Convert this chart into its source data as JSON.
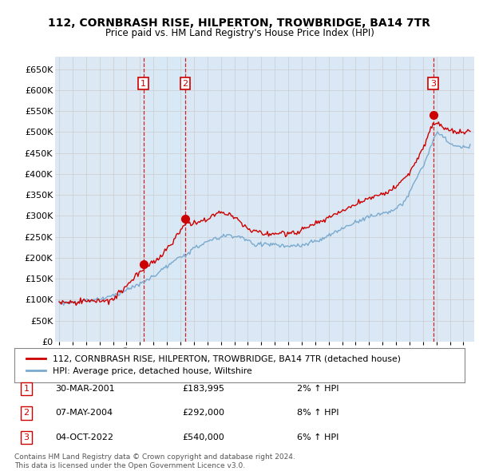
{
  "title": "112, CORNBRASH RISE, HILPERTON, TROWBRIDGE, BA14 7TR",
  "subtitle": "Price paid vs. HM Land Registry's House Price Index (HPI)",
  "ylim": [
    0,
    680000
  ],
  "yticks": [
    0,
    50000,
    100000,
    150000,
    200000,
    250000,
    300000,
    350000,
    400000,
    450000,
    500000,
    550000,
    600000,
    650000
  ],
  "ytick_labels": [
    "£0",
    "£50K",
    "£100K",
    "£150K",
    "£200K",
    "£250K",
    "£300K",
    "£350K",
    "£400K",
    "£450K",
    "£500K",
    "£550K",
    "£600K",
    "£650K"
  ],
  "line_color_property": "#cc0000",
  "line_color_hpi": "#7aaad0",
  "transaction_color": "#cc0000",
  "transaction_dates": [
    2001.25,
    2004.35,
    2022.76
  ],
  "transaction_prices": [
    183995,
    292000,
    540000
  ],
  "transaction_labels": [
    "1",
    "2",
    "3"
  ],
  "shade_color": "#d8e8f5",
  "legend_label_property": "112, CORNBRASH RISE, HILPERTON, TROWBRIDGE, BA14 7TR (detached house)",
  "legend_label_hpi": "HPI: Average price, detached house, Wiltshire",
  "table_rows": [
    [
      "1",
      "30-MAR-2001",
      "£183,995",
      "2% ↑ HPI"
    ],
    [
      "2",
      "07-MAY-2004",
      "£292,000",
      "8% ↑ HPI"
    ],
    [
      "3",
      "04-OCT-2022",
      "£540,000",
      "6% ↑ HPI"
    ]
  ],
  "footer": "Contains HM Land Registry data © Crown copyright and database right 2024.\nThis data is licensed under the Open Government Licence v3.0.",
  "background_color": "#ffffff",
  "grid_color": "#cccccc",
  "plot_bg_color": "#dce8f3"
}
